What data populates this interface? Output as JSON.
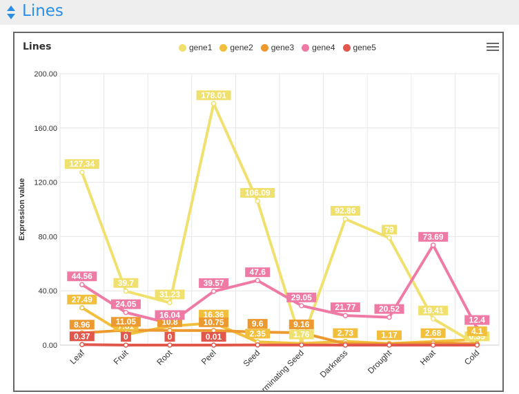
{
  "header": {
    "title": "Lines"
  },
  "chart_data": {
    "type": "line",
    "title": "Lines",
    "ylabel": "Expression value",
    "xlabel": "",
    "ylim": [
      0,
      200
    ],
    "yticks": [
      "0.00",
      "40.00",
      "80.00",
      "120.00",
      "160.00",
      "200.00"
    ],
    "categories": [
      "Leaf",
      "Fruit",
      "Root",
      "Peel",
      "Seed",
      "Germinating Seed",
      "Darkness",
      "Drought",
      "Heat",
      "Cold"
    ],
    "legend_position": "top",
    "grid": true,
    "series": [
      {
        "name": "gene1",
        "color": "#f0e06e",
        "values": [
          127.34,
          39.7,
          31.23,
          178.01,
          106.09,
          1.76,
          92.86,
          79,
          19.41,
          0.35
        ],
        "labels": [
          "127.34",
          "39.7",
          "31.23",
          "178.01",
          "106.09",
          "1.76",
          "92.86",
          "79",
          "19.41",
          "0.35"
        ]
      },
      {
        "name": "gene2",
        "color": "#f1bf3c",
        "values": [
          27.49,
          7.81,
          13.9,
          16.36,
          2.35,
          1.2,
          2.73,
          1.17,
          2.68,
          4.1
        ],
        "labels": [
          "27.49",
          "7.81",
          "13.9",
          "16.36",
          "2.35",
          "",
          "2.73",
          "1.17",
          "2.68",
          "4.1"
        ]
      },
      {
        "name": "gene3",
        "color": "#ec9a2f",
        "values": [
          8.96,
          11.05,
          10.8,
          10.75,
          9.6,
          9.16,
          1.0,
          0.8,
          1.5,
          1.0
        ],
        "labels": [
          "8.96",
          "11.05",
          "10.8",
          "10.75",
          "9.6",
          "9.16",
          "",
          "",
          "",
          ""
        ]
      },
      {
        "name": "gene4",
        "color": "#ee7aa5",
        "values": [
          44.56,
          24.05,
          16.04,
          39.57,
          47.6,
          29.05,
          21.77,
          20.52,
          73.69,
          12.4
        ],
        "labels": [
          "44.56",
          "24.05",
          "16.04",
          "39.57",
          "47.6",
          "29.05",
          "21.77",
          "20.52",
          "73.69",
          "12.4"
        ]
      },
      {
        "name": "gene5",
        "color": "#e2574c",
        "values": [
          0.37,
          0,
          0,
          0.01,
          0.1,
          0.05,
          0,
          0,
          0,
          0
        ],
        "labels": [
          "0.37",
          "0",
          "0",
          "0.01",
          "",
          "",
          "",
          "",
          "",
          ""
        ]
      }
    ]
  }
}
